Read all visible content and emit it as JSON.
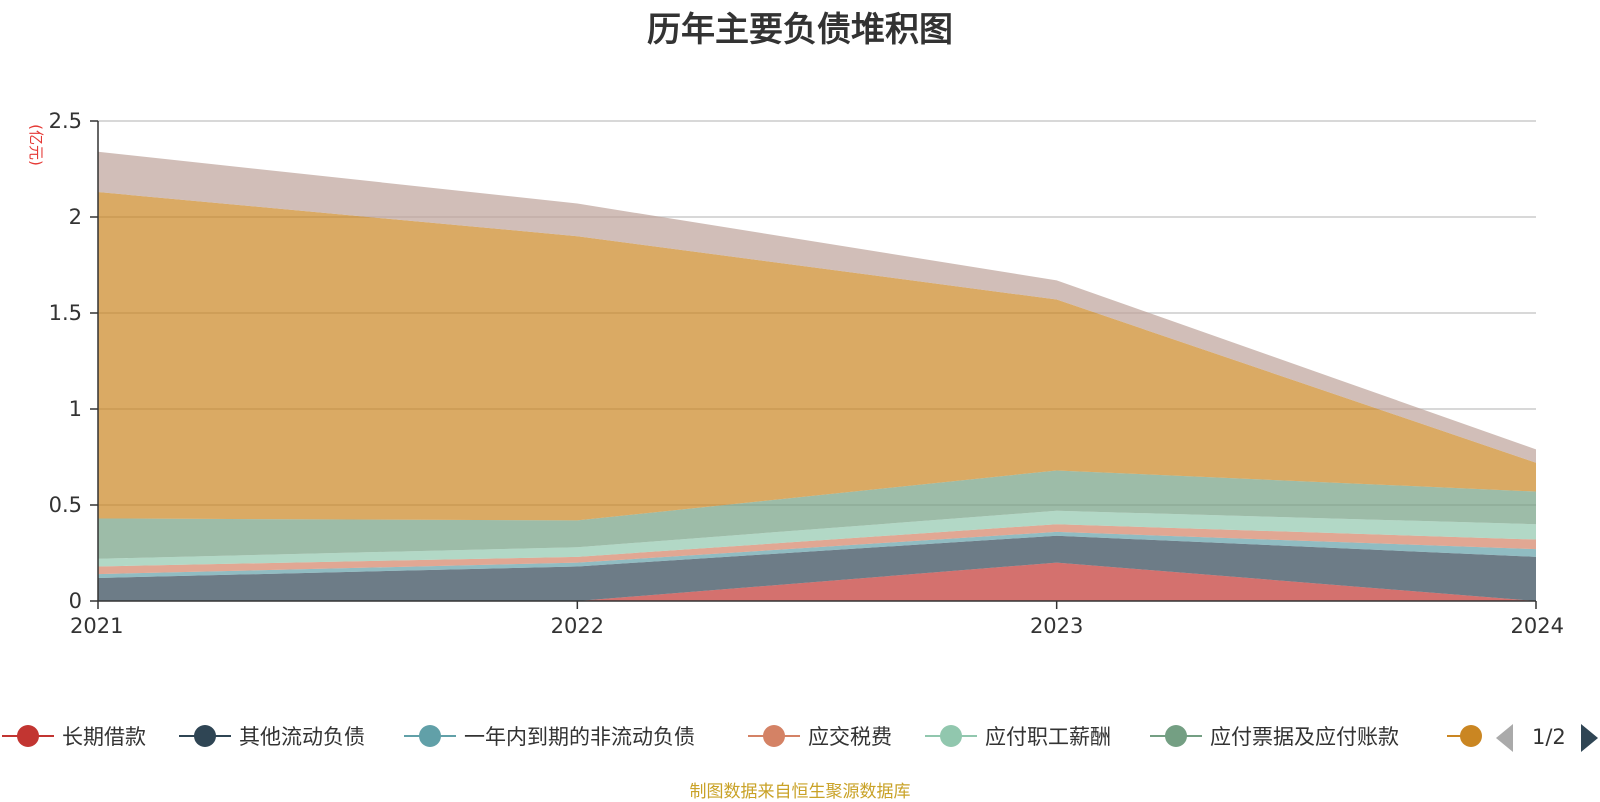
{
  "chart_data": {
    "type": "area",
    "stacked": true,
    "title": "历年主要负债堆积图",
    "y_unit": "(亿元)",
    "categories": [
      "2021",
      "2022",
      "2023",
      "2024"
    ],
    "ylim": [
      0,
      2.5
    ],
    "yticks": [
      "0",
      "0.5",
      "1",
      "1.5",
      "2",
      "2.5"
    ],
    "grid": true,
    "legend_position": "bottom",
    "series": [
      {
        "name": "长期借款",
        "color": "#c23531",
        "values": [
          0,
          0,
          0.2,
          0
        ]
      },
      {
        "name": "其他流动负债",
        "color": "#2f4554",
        "values": [
          0.12,
          0.18,
          0.14,
          0.23
        ]
      },
      {
        "name": "一年内到期的非流动负债",
        "color": "#61a0a8",
        "values": [
          0.02,
          0.02,
          0.02,
          0.04
        ]
      },
      {
        "name": "应交税费",
        "color": "#d48265",
        "values": [
          0.04,
          0.03,
          0.04,
          0.05
        ]
      },
      {
        "name": "应付职工薪酬",
        "color": "#91c7ae",
        "values": [
          0.04,
          0.05,
          0.07,
          0.08
        ]
      },
      {
        "name": "应付票据及应付账款",
        "color": "#749f83",
        "values": [
          0.21,
          0.14,
          0.21,
          0.17
        ]
      },
      {
        "color": "#ca8622",
        "values": [
          1.7,
          1.48,
          0.89,
          0.15
        ]
      },
      {
        "color": "#bda29a",
        "values": [
          0.21,
          0.17,
          0.1,
          0.07
        ]
      }
    ]
  },
  "legend": {
    "page_text": "1/2"
  },
  "source_text": "制图数据来自恒生聚源数据库"
}
